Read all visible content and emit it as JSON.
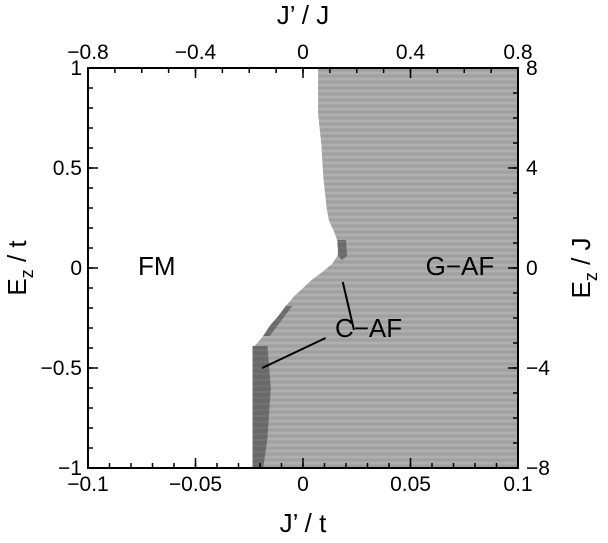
{
  "chart_data": {
    "type": "phase_diagram",
    "title": "",
    "axes": {
      "bottom": {
        "label_main": "J’ / t",
        "range": [
          -0.1,
          0.1
        ],
        "ticks": [
          -0.1,
          -0.05,
          0,
          0.05,
          0.1
        ],
        "tick_labels": [
          "−0.1",
          "−0.05",
          "0",
          "0.05",
          "0.1"
        ]
      },
      "top": {
        "label_main": "J’ / J",
        "range": [
          -0.8,
          0.8
        ],
        "ticks": [
          -0.8,
          -0.4,
          0,
          0.4,
          0.8
        ],
        "tick_labels": [
          "−0.8",
          "−0.4",
          "0",
          "0.4",
          "0.8"
        ]
      },
      "left": {
        "label_main": "E",
        "label_sub": "z",
        "label_rest": " / t",
        "range": [
          -1,
          1
        ],
        "ticks": [
          -1,
          -0.5,
          0,
          0.5,
          1
        ],
        "tick_labels": [
          "−1",
          "−0.5",
          "0",
          "0.5",
          "1"
        ]
      },
      "right": {
        "label_main": "E",
        "label_sub": "z",
        "label_rest": " / J",
        "range": [
          -8,
          8
        ],
        "ticks": [
          -8,
          -4,
          0,
          4,
          8
        ],
        "tick_labels": [
          "−8",
          "−4",
          "0",
          "4",
          "8"
        ]
      }
    },
    "regions": [
      {
        "name": "FM",
        "label_x": -0.068,
        "label_y": 0.0,
        "color": "#ffffff"
      },
      {
        "name": "G−AF",
        "label_x": 0.073,
        "label_y": 0.0,
        "color": "#a9a9a9"
      },
      {
        "name": "C−AF",
        "label_x": 0.0305,
        "label_y": -0.31,
        "color": "#6e6e6e"
      }
    ],
    "c_af_pointers": [
      {
        "from": [
          0.0237,
          -0.31
        ],
        "to": [
          0.0185,
          -0.07
        ]
      },
      {
        "from": [
          0.0105,
          -0.35
        ],
        "to": [
          -0.019,
          -0.5
        ]
      }
    ],
    "fm_boundary": [
      [
        0.007,
        1.0
      ],
      [
        0.007,
        0.77
      ],
      [
        0.0085,
        0.62
      ],
      [
        0.0095,
        0.45
      ],
      [
        0.011,
        0.3
      ],
      [
        0.012,
        0.24
      ],
      [
        0.0145,
        0.18
      ],
      [
        0.0165,
        0.12
      ],
      [
        0.016,
        0.06
      ],
      [
        0.0135,
        0.02
      ],
      [
        0.009,
        -0.02
      ],
      [
        0.004,
        -0.06
      ],
      [
        0.0,
        -0.1
      ],
      [
        -0.004,
        -0.14
      ],
      [
        -0.008,
        -0.19
      ],
      [
        -0.0115,
        -0.24
      ],
      [
        -0.0155,
        -0.29
      ],
      [
        -0.0185,
        -0.34
      ],
      [
        -0.0225,
        -0.39
      ],
      [
        -0.0235,
        -0.5
      ],
      [
        -0.0235,
        -1.0
      ]
    ],
    "c_af_region": [
      [
        0.016,
        0.14
      ],
      [
        0.02,
        0.14
      ],
      [
        0.0205,
        0.06
      ],
      [
        0.018,
        0.04
      ],
      [
        0.0165,
        0.06
      ],
      [
        0.016,
        0.12
      ]
    ],
    "c_af_left_strip": [
      [
        -0.0235,
        -0.39
      ],
      [
        -0.0165,
        -0.39
      ],
      [
        -0.015,
        -0.6
      ],
      [
        -0.0165,
        -0.85
      ],
      [
        -0.0185,
        -1.0
      ],
      [
        -0.0235,
        -1.0
      ]
    ],
    "c_af_mid_strip": [
      [
        -0.0185,
        -0.34
      ],
      [
        -0.0155,
        -0.29
      ],
      [
        -0.0115,
        -0.24
      ],
      [
        -0.008,
        -0.19
      ],
      [
        -0.005,
        -0.19
      ],
      [
        -0.0085,
        -0.24
      ],
      [
        -0.012,
        -0.29
      ],
      [
        -0.0155,
        -0.34
      ]
    ],
    "grid": false,
    "legend": "none"
  }
}
